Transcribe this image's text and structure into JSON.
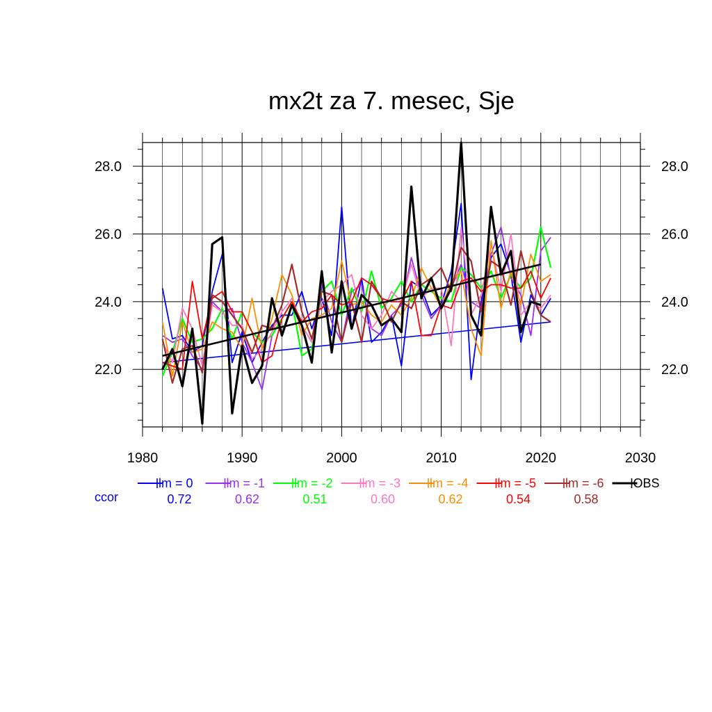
{
  "chart_data": {
    "type": "line",
    "title": "mx2t za 7. mesec, Sje",
    "xlim": [
      1980,
      2030
    ],
    "ylim": [
      20.3,
      28.7
    ],
    "x_ticks": [
      "1980",
      "1990",
      "2000",
      "2010",
      "2020",
      "2030"
    ],
    "y_ticks": [
      "22.0",
      "24.0",
      "26.0",
      "28.0"
    ],
    "grid": true,
    "legend_position": "bottom",
    "ccor_label": "ccor",
    "x": [
      1982,
      1983,
      1984,
      1985,
      1986,
      1987,
      1988,
      1989,
      1990,
      1991,
      1992,
      1993,
      1994,
      1995,
      1996,
      1997,
      1998,
      1999,
      2000,
      2001,
      2002,
      2003,
      2004,
      2005,
      2006,
      2007,
      2008,
      2009,
      2010,
      2011,
      2012,
      2013,
      2014,
      2015,
      2016,
      2017,
      2018,
      2019,
      2020,
      2021
    ],
    "series": [
      {
        "name": "lm = 0",
        "ccor": "0.72",
        "color": "#0000ff",
        "width": 1.8,
        "values": [
          24.4,
          22.9,
          23.0,
          22.5,
          22.7,
          24.3,
          25.4,
          22.2,
          23.1,
          22.2,
          22.8,
          23.3,
          23.6,
          23.6,
          24.3,
          23.2,
          24.1,
          23.0,
          26.8,
          23.2,
          24.7,
          22.8,
          23.1,
          23.6,
          22.1,
          24.6,
          24.4,
          23.6,
          23.9,
          24.9,
          26.9,
          21.7,
          24.0,
          25.3,
          25.7,
          24.8,
          22.8,
          24.2,
          23.6,
          24.1
        ],
        "trend": [
          [
            1982,
            22.2
          ],
          [
            2021,
            23.4
          ]
        ]
      },
      {
        "name": "lm = -1",
        "ccor": "0.62",
        "color": "#9a2ef0",
        "width": 1.8,
        "values": [
          23.0,
          22.8,
          22.9,
          22.4,
          22.0,
          24.0,
          23.7,
          23.8,
          22.8,
          22.2,
          21.4,
          23.0,
          23.5,
          24.0,
          23.3,
          22.8,
          24.5,
          23.4,
          22.8,
          24.3,
          24.5,
          23.2,
          23.0,
          23.6,
          23.9,
          25.3,
          24.2,
          23.5,
          23.9,
          24.4,
          25.1,
          24.0,
          23.8,
          25.4,
          26.2,
          24.7,
          24.2,
          23.0,
          25.5,
          25.9
        ]
      },
      {
        "name": "lm = -2",
        "ccor": "0.51",
        "color": "#00ff00",
        "width": 2.2,
        "values": [
          21.8,
          22.5,
          23.5,
          22.8,
          22.9,
          23.2,
          23.8,
          22.9,
          23.7,
          23.1,
          22.8,
          23.0,
          23.5,
          24.0,
          22.4,
          22.6,
          24.3,
          24.6,
          23.6,
          24.4,
          23.7,
          24.9,
          23.8,
          24.1,
          24.6,
          24.0,
          24.5,
          24.3,
          24.1,
          24.0,
          25.0,
          24.8,
          24.4,
          24.9,
          24.1,
          24.8,
          24.4,
          24.7,
          26.2,
          25.0
        ]
      },
      {
        "name": "lm = -3",
        "ccor": "0.60",
        "color": "#ff77c0",
        "width": 1.8,
        "values": [
          22.8,
          22.2,
          23.8,
          23.2,
          22.1,
          23.9,
          23.7,
          23.3,
          23.3,
          22.3,
          22.6,
          23.1,
          23.7,
          24.1,
          23.3,
          22.8,
          24.0,
          24.3,
          24.5,
          24.8,
          23.6,
          23.2,
          23.6,
          24.3,
          24.0,
          25.1,
          24.1,
          24.4,
          24.4,
          22.7,
          26.2,
          23.6,
          24.2,
          25.7,
          24.3,
          26.0,
          23.6,
          24.0,
          23.8,
          24.2
        ]
      },
      {
        "name": "lm = -4",
        "ccor": "0.62",
        "color": "#ff8c00",
        "width": 1.8,
        "values": [
          23.4,
          21.8,
          23.4,
          22.5,
          22.6,
          23.4,
          23.2,
          23.1,
          22.6,
          24.1,
          22.6,
          23.5,
          24.8,
          24.2,
          23.0,
          23.5,
          23.6,
          23.8,
          25.2,
          23.9,
          24.0,
          23.6,
          23.4,
          23.9,
          23.6,
          24.1,
          25.0,
          24.4,
          23.8,
          24.6,
          24.9,
          23.2,
          22.4,
          25.8,
          23.8,
          24.9,
          23.9,
          25.4,
          24.6,
          24.8
        ]
      },
      {
        "name": "lm = -5",
        "ccor": "0.54",
        "color": "#ff0000",
        "width": 1.8,
        "values": [
          22.2,
          22.1,
          22.0,
          24.6,
          22.9,
          24.1,
          24.3,
          23.7,
          23.7,
          23.1,
          22.2,
          22.4,
          23.5,
          24.0,
          23.4,
          23.7,
          23.8,
          24.2,
          23.9,
          24.0,
          24.7,
          24.5,
          24.1,
          24.0,
          24.0,
          24.6,
          23.0,
          23.0,
          23.9,
          23.8,
          24.6,
          24.7,
          24.3,
          24.5,
          24.5,
          24.4,
          24.4,
          24.9,
          24.1,
          24.7
        ]
      },
      {
        "name": "lm = -6",
        "ccor": "0.58",
        "color": "#a52a2a",
        "width": 2.2,
        "values": [
          22.9,
          21.6,
          22.6,
          22.7,
          21.9,
          24.2,
          24.0,
          23.6,
          23.2,
          22.5,
          23.3,
          23.2,
          23.9,
          25.1,
          23.7,
          22.9,
          24.3,
          24.2,
          22.8,
          24.0,
          22.8,
          24.6,
          24.1,
          23.4,
          24.0,
          23.8,
          24.5,
          24.7,
          25.0,
          24.3,
          25.6,
          25.2,
          23.7,
          25.2,
          25.0,
          23.9,
          25.5,
          24.3,
          23.6,
          23.4
        ]
      },
      {
        "name": "OBS",
        "ccor": "",
        "color": "#000000",
        "width": 3.2,
        "values": [
          22.0,
          22.6,
          21.5,
          23.2,
          20.4,
          25.7,
          25.9,
          20.7,
          22.7,
          21.6,
          22.1,
          24.1,
          23.0,
          23.9,
          23.3,
          22.2,
          24.9,
          22.5,
          24.6,
          23.2,
          24.2,
          23.9,
          23.3,
          23.5,
          23.1,
          27.4,
          24.1,
          24.7,
          23.8,
          24.4,
          28.7,
          23.6,
          23.0,
          26.8,
          24.8,
          25.5,
          23.1,
          24.0,
          23.9,
          null
        ],
        "trend": [
          [
            1982,
            22.4
          ],
          [
            2020,
            25.1
          ]
        ]
      }
    ]
  }
}
